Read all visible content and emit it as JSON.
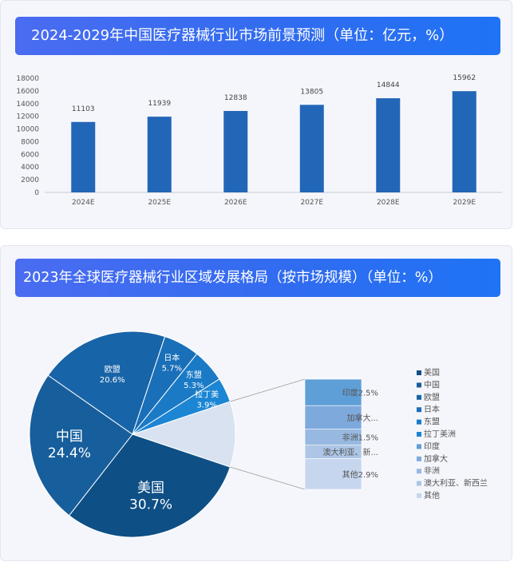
{
  "chart1": {
    "title": "2024-2029年中国医疗器械行业市场前景预测（单位：亿元，%）",
    "chart_data": {
      "type": "bar",
      "categories": [
        "2024E",
        "2025E",
        "2026E",
        "2027E",
        "2028E",
        "2029E"
      ],
      "values": [
        11103,
        11939,
        12838,
        13805,
        14844,
        15962
      ],
      "ylim": [
        0,
        18000
      ],
      "yticks": [
        0,
        2000,
        4000,
        6000,
        8000,
        10000,
        12000,
        14000,
        16000,
        18000
      ],
      "grid": false,
      "color": "#2266b8"
    }
  },
  "chart2": {
    "title": "2023年全球医疗器械行业区域发展格局（按市场规模）（单位：%）",
    "chart_data": {
      "type": "pie",
      "slices": [
        {
          "name": "美国",
          "value": 30.7,
          "label": "美国",
          "pct": "30.7%",
          "color": "#0e4f86"
        },
        {
          "name": "中国",
          "value": 24.4,
          "label": "中国",
          "pct": "24.4%",
          "color": "#175e9c"
        },
        {
          "name": "欧盟",
          "value": 20.6,
          "label": "欧盟",
          "pct": "20.6%",
          "color": "#1864a8"
        },
        {
          "name": "日本",
          "value": 5.7,
          "label": "日本",
          "pct": "5.7%",
          "color": "#1a6fb9"
        },
        {
          "name": "东盟",
          "value": 5.3,
          "label": "东盟",
          "pct": "5.3%",
          "color": "#1a7ac6"
        },
        {
          "name": "拉丁美洲",
          "value": 3.9,
          "label": "拉丁美",
          "pct": "3.9%",
          "color": "#1c86d4"
        },
        {
          "name": "印度",
          "value": 2.5,
          "label": "印度2.5%",
          "color": "#5f9fd8"
        },
        {
          "name": "加拿大",
          "value": 2.2,
          "label": "加拿大...",
          "color": "#7ea9dc"
        },
        {
          "name": "非洲",
          "value": 1.5,
          "label": "非洲1.5%",
          "color": "#97b8e0"
        },
        {
          "name": "澳大利亚、新西兰",
          "value": 1.3,
          "label": "澳大利亚、新...",
          "color": "#adc6e6"
        },
        {
          "name": "其他",
          "value": 2.9,
          "label": "其他2.9%",
          "color": "#c6d6ee"
        }
      ],
      "others_group_color": "#d8e2f0",
      "legend_position": "right"
    }
  }
}
